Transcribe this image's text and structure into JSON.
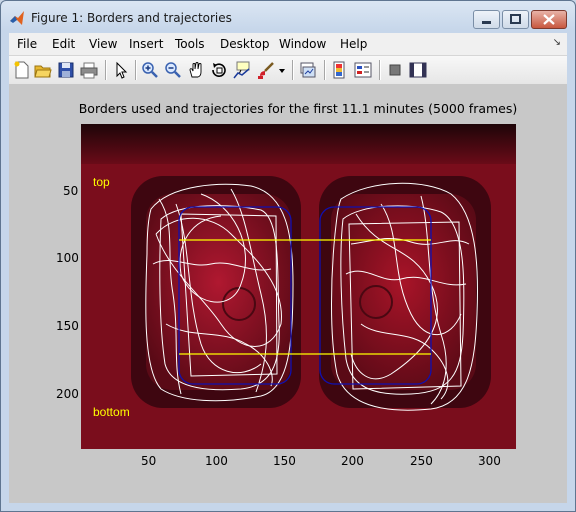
{
  "window": {
    "title": "Figure 1: Borders and trajectories"
  },
  "menu": {
    "items": [
      "File",
      "Edit",
      "View",
      "Insert",
      "Tools",
      "Desktop",
      "Window",
      "Help"
    ]
  },
  "toolbar": {
    "icons": [
      "new-figure-icon",
      "open-file-icon",
      "save-icon",
      "print-icon",
      "edit-plot-arrow-icon",
      "zoom-in-icon",
      "zoom-out-icon",
      "pan-hand-icon",
      "rotate-3d-icon",
      "data-cursor-icon",
      "brush-icon",
      "brush-dropdown-icon",
      "link-plot-icon",
      "colorbar-icon",
      "legend-icon",
      "hide-plot-tools-icon",
      "show-plot-tools-icon"
    ]
  },
  "axes": {
    "title": "Borders used and trajectories for the first 11.1 minutes (5000 frames)",
    "xticks": [
      "50",
      "100",
      "150",
      "200",
      "250",
      "300"
    ],
    "yticks": [
      "50",
      "100",
      "150",
      "200"
    ],
    "annotations": {
      "top": "top",
      "bottom": "bottom"
    },
    "colors": {
      "background": "#7a0d1c",
      "border": "#1010b0",
      "line": "#ffff00",
      "trajectory": "#ffffff",
      "annotation": "#ffff00"
    }
  }
}
